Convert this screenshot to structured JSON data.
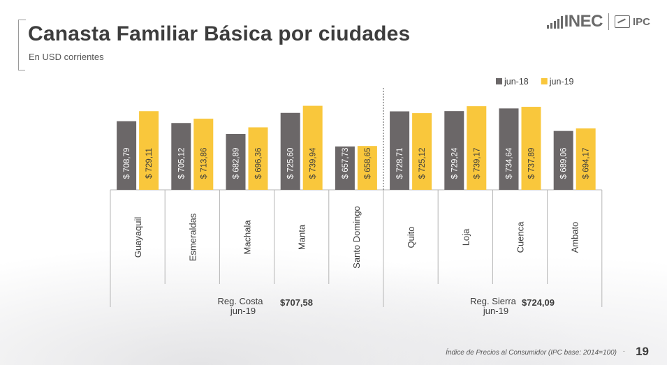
{
  "header": {
    "title": "Canasta Familiar Básica por ciudades",
    "subtitle": "En USD corrientes"
  },
  "logo": {
    "brand": "INEC",
    "product": "IPC",
    "icon": "inec-bars-icon"
  },
  "chart_data": {
    "type": "bar",
    "categories": [
      "Guayaquil",
      "Esmeraldas",
      "Machala",
      "Manta",
      "Santo Domingo",
      "Quito",
      "Loja",
      "Cuenca",
      "Ambato"
    ],
    "series": [
      {
        "name": "jun-18",
        "color": "#6b6768",
        "values": [
          708.79,
          705.12,
          682.89,
          725.6,
          657.73,
          728.71,
          729.24,
          734.64,
          689.06
        ],
        "labels": [
          "$ 708,79",
          "$ 705,12",
          "$ 682,89",
          "$ 725,60",
          "$ 657,73",
          "$ 728,71",
          "$ 729,24",
          "$ 734,64",
          "$ 689,06"
        ]
      },
      {
        "name": "jun-19",
        "color": "#f9c73c",
        "values": [
          729.11,
          713.86,
          696.36,
          739.94,
          658.65,
          725.12,
          739.17,
          737.89,
          694.17
        ],
        "labels": [
          "$ 729,11",
          "$ 713,86",
          "$ 696,36",
          "$ 739,94",
          "$ 658,65",
          "$ 725,12",
          "$ 739,17",
          "$ 737,89",
          "$ 694,17"
        ]
      }
    ],
    "legend_position": "top-right",
    "grid": false,
    "regions": [
      {
        "name": "Reg. Costa",
        "period": "jun-19",
        "value": 707.58,
        "value_label": "$707,58",
        "categories": [
          "Guayaquil",
          "Esmeraldas",
          "Machala",
          "Manta",
          "Santo Domingo"
        ]
      },
      {
        "name": "Reg. Sierra",
        "period": "jun-19",
        "value": 724.09,
        "value_label": "$724,09",
        "categories": [
          "Quito",
          "Loja",
          "Cuenca",
          "Ambato"
        ]
      }
    ]
  },
  "footer": {
    "note": "Índice de Precios al Consumidor (IPC base: 2014=100)",
    "dot": "·",
    "page_number": "19"
  }
}
